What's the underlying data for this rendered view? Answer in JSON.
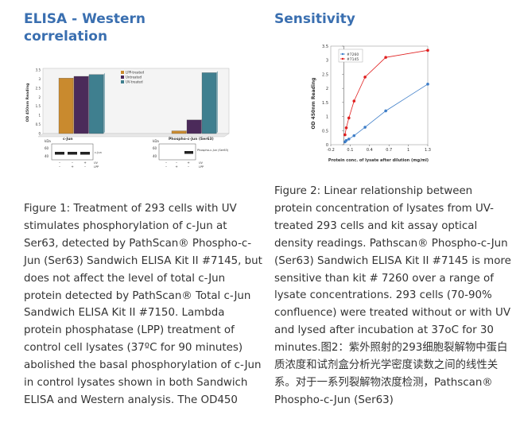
{
  "left": {
    "heading": "ELISA - Western correlation",
    "caption": "Figure 1: Treatment of 293 cells with UV stimulates phosphorylation of c-Jun at Ser63, detected by PathScan® Phospho-c-Jun (Ser63) Sandwich ELISA Kit II #7145, but does not affect the level of total c-Jun protein detected by PathScan® Total c-Jun Sandwich ELISA Kit II #7150. Lambda protein phosphatase (LPP) treatment of control cell lysates (37ºC for 90 minutes) abolished the basal phosphorylation of c-Jun in control lysates shown in both Sandwich ELISA and Western analysis. The OD450"
  },
  "right": {
    "heading": "Sensitivity",
    "caption": "Figure 2: Linear relationship between protein concentration of lysates from UV-treated 293 cells and kit assay optical density readings. Pathscan® Phospho-c-Jun (Ser63) Sandwich ELISA Kit II #7145 is more sensitive than kit # 7260 over a range of lysate concentrations. 293 cells (70-90% confluence) were treated without or with UV and lysed after incubation at 37oC for 30 minutes.图2：紫外照射的293细胞裂解物中蛋白质浓度和试剂盒分析光学密度读数之间的线性关系。对于一系列裂解物浓度检测，Pathscan® Phospho-c-Jun (Ser63)"
  },
  "chart_data": [
    {
      "type": "bar",
      "ylabel": "OD 450nm Reading",
      "ylim": [
        0,
        3.5
      ],
      "yticks": [
        "0",
        "0.5",
        "1",
        "1.5",
        "2",
        "2.5",
        "3",
        "3.5"
      ],
      "categories": [
        "c-Jun",
        "Phospho-c-Jun (Ser63)"
      ],
      "series": [
        {
          "name": "LPP-treated",
          "values": [
            3.05,
            0.15
          ],
          "color": "#c98a2e"
        },
        {
          "name": "Untreated",
          "values": [
            3.15,
            0.75
          ],
          "color": "#4b2a5a"
        },
        {
          "name": "UV-treated",
          "values": [
            3.25,
            3.35
          ],
          "color": "#3f7f8f"
        }
      ],
      "legend_position": "top-center",
      "grid": false,
      "western": {
        "kda_label": "kDa",
        "markers": [
          "60",
          "40"
        ],
        "panel_labels": [
          "c-Jun",
          "Phospho-c-Jun (Ser63)"
        ],
        "row_labels": [
          "UV",
          "LPP"
        ],
        "signs_left": [
          [
            "–",
            "–",
            "+"
          ],
          [
            "–",
            "+",
            "–"
          ]
        ],
        "signs_right": [
          [
            "–",
            "–",
            "+"
          ],
          [
            "–",
            "+",
            "–"
          ]
        ]
      }
    },
    {
      "type": "line",
      "xlabel": "Protein conc. of lysate after dilution (mg/ml)",
      "ylabel": "OD 450nm Reading",
      "xlim": [
        -0.2,
        1.3
      ],
      "ylim": [
        0,
        3.5
      ],
      "xticks": [
        "-0.2",
        "0.1",
        "0.4",
        "0.7",
        "1",
        "1.3"
      ],
      "yticks": [
        "0",
        "0.5",
        "1",
        "1.5",
        "2",
        "2.5",
        "3",
        "3.5"
      ],
      "legend_position": "top-left",
      "grid": false,
      "series": [
        {
          "name": "#7260",
          "color": "#3e7ec8",
          "x": [
            0.02,
            0.04,
            0.08,
            0.16,
            0.33,
            0.65,
            1.3
          ],
          "y": [
            0.1,
            0.15,
            0.2,
            0.32,
            0.62,
            1.2,
            2.15
          ]
        },
        {
          "name": "#7145",
          "color": "#e02020",
          "x": [
            0.02,
            0.04,
            0.08,
            0.16,
            0.33,
            0.65,
            1.3
          ],
          "y": [
            0.35,
            0.6,
            0.95,
            1.55,
            2.4,
            3.1,
            3.35
          ]
        }
      ]
    }
  ]
}
